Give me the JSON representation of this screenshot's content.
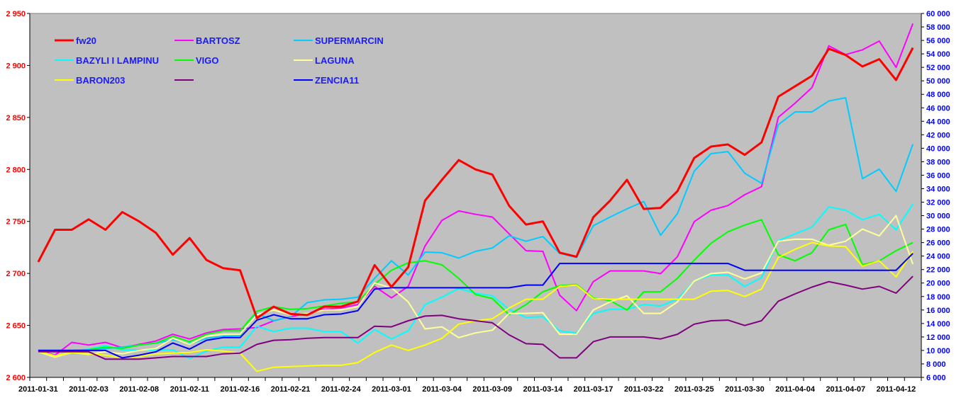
{
  "chart_data": {
    "type": "line",
    "title": "",
    "xlabel": "",
    "ylabel_left": "",
    "ylabel_right": "",
    "x_tick_labels": [
      "2011-01-31",
      "2011-02-03",
      "2011-02-08",
      "2011-02-11",
      "2011-02-16",
      "2011-02-21",
      "2011-02-24",
      "2011-03-01",
      "2011-03-04",
      "2011-03-09",
      "2011-03-14",
      "2011-03-17",
      "2011-03-22",
      "2011-03-25",
      "2011-03-30",
      "2011-04-04",
      "2011-04-07",
      "2011-04-12"
    ],
    "x_label_every": 3,
    "num_points": 53,
    "ylim_left": [
      2600,
      2950
    ],
    "ylim_right": [
      6000,
      60000
    ],
    "yticks_left": [
      "2 600",
      "2 650",
      "2 700",
      "2 750",
      "2 800",
      "2 850",
      "2 900",
      "2 950"
    ],
    "yticks_right": [
      "6 000",
      "8 000",
      "10 000",
      "12 000",
      "14 000",
      "16 000",
      "18 000",
      "20 000",
      "22 000",
      "24 000",
      "26 000",
      "28 000",
      "30 000",
      "32 000",
      "34 000",
      "36 000",
      "38 000",
      "40 000",
      "42 000",
      "44 000",
      "46 000",
      "48 000",
      "50 000",
      "52 000",
      "54 000",
      "56 000",
      "58 000",
      "60 000"
    ],
    "grid": false,
    "legend_position": "top-left",
    "colors": {
      "plot_bg": "#C0C0C0",
      "left_axis_text": "#FF0000",
      "right_axis_text": "#0000FF",
      "legend_text": "#1A1AFF"
    },
    "series": [
      {
        "name": "fw20",
        "axis": "left",
        "color": "#FF0000",
        "width": 3,
        "values": [
          2711,
          2742,
          2742,
          2752,
          2742,
          2759,
          2750,
          2739,
          2718,
          2734,
          2713,
          2705,
          2703,
          2657,
          2668,
          2661,
          2660,
          2668,
          2668,
          2673,
          2708,
          2687,
          2706,
          2770,
          2790,
          2809,
          2800,
          2795,
          2765,
          2747,
          2750,
          2720,
          2716,
          2754,
          2770,
          2790,
          2762,
          2763,
          2779,
          2811,
          2822,
          2824,
          2814,
          2826,
          2870,
          2880,
          2890,
          2916,
          2910,
          2899,
          2906,
          2886,
          2917
        ]
      },
      {
        "name": "BARTOSZ",
        "axis": "right",
        "color": "#FF00FF",
        "width": 2,
        "values": [
          10000,
          9300,
          11200,
          10800,
          11200,
          10400,
          10900,
          11400,
          12400,
          11700,
          12600,
          13100,
          13200,
          13400,
          14400,
          15000,
          15500,
          16100,
          16300,
          16800,
          19500,
          17800,
          19500,
          25500,
          29300,
          30700,
          30200,
          29800,
          27300,
          24800,
          24700,
          18200,
          15900,
          20200,
          21800,
          21800,
          21800,
          21400,
          23900,
          29100,
          30800,
          31500,
          33100,
          34300,
          44600,
          46700,
          49000,
          55200,
          53900,
          54600,
          55900,
          52000,
          58500
        ]
      },
      {
        "name": "SUPERMARCIN",
        "axis": "right",
        "color": "#00CCFF",
        "width": 2,
        "values": [
          10000,
          10000,
          10000,
          10100,
          10300,
          10500,
          10800,
          11100,
          11600,
          11000,
          11800,
          12100,
          12200,
          15500,
          14400,
          15000,
          17100,
          17500,
          17600,
          17900,
          20700,
          23300,
          21200,
          24600,
          24500,
          23700,
          24700,
          25200,
          27000,
          26200,
          26900,
          24400,
          23800,
          28500,
          29800,
          31000,
          32100,
          27100,
          30300,
          36600,
          39200,
          39500,
          36300,
          34800,
          43500,
          45400,
          45400,
          47000,
          47500,
          35500,
          36900,
          33600,
          40600
        ]
      },
      {
        "name": "BAZYLI I LAMPINU",
        "axis": "right",
        "color": "#00FFFF",
        "width": 2,
        "values": [
          9900,
          9900,
          9900,
          10200,
          10700,
          10100,
          10100,
          10100,
          10100,
          8800,
          9900,
          10500,
          10500,
          13600,
          12800,
          13300,
          13300,
          12800,
          12800,
          11100,
          13100,
          11700,
          12900,
          16800,
          17900,
          19200,
          18500,
          18100,
          16100,
          14900,
          15000,
          12900,
          12600,
          15500,
          16100,
          16100,
          16800,
          16600,
          17600,
          20300,
          21200,
          21200,
          19500,
          20800,
          26300,
          27300,
          28300,
          31300,
          30800,
          29400,
          30200,
          27900,
          31700
        ]
      },
      {
        "name": "VIGO",
        "axis": "right",
        "color": "#00FF00",
        "width": 2,
        "values": [
          10000,
          10000,
          10000,
          10100,
          10500,
          10300,
          10800,
          11100,
          12100,
          11300,
          12400,
          12900,
          12900,
          15800,
          16500,
          16100,
          16200,
          16600,
          17000,
          17200,
          19800,
          21900,
          23000,
          23300,
          22700,
          20700,
          18300,
          17700,
          15300,
          16800,
          18700,
          19600,
          19800,
          17800,
          17400,
          16000,
          18700,
          18700,
          20700,
          23400,
          25900,
          27600,
          28600,
          29400,
          24200,
          23300,
          24500,
          27900,
          28700,
          22700,
          23300,
          24800,
          26000
        ]
      },
      {
        "name": "LAGUNA",
        "axis": "right",
        "color": "#FFFF99",
        "width": 2,
        "values": [
          9800,
          9000,
          9700,
          9400,
          9800,
          9500,
          10000,
          10300,
          11800,
          10900,
          12100,
          12400,
          12400,
          15300,
          16000,
          15300,
          15500,
          16000,
          16000,
          16500,
          20000,
          19300,
          17200,
          13200,
          13500,
          11900,
          12600,
          13000,
          15500,
          15500,
          15600,
          12400,
          12400,
          16000,
          17200,
          18100,
          15500,
          15500,
          17200,
          20300,
          21400,
          21600,
          20600,
          21500,
          26200,
          26500,
          26500,
          25600,
          26200,
          28000,
          27000,
          30000,
          22800
        ]
      },
      {
        "name": "BARON203",
        "axis": "right",
        "color": "#FFFF00",
        "width": 2,
        "values": [
          9900,
          9200,
          9700,
          9500,
          9300,
          8900,
          9100,
          9500,
          9600,
          9700,
          10100,
          9900,
          9600,
          6900,
          7500,
          7600,
          7700,
          7800,
          7800,
          8200,
          9700,
          10800,
          10000,
          10800,
          11800,
          13900,
          14400,
          14700,
          16300,
          17600,
          17600,
          19500,
          19700,
          17700,
          17600,
          17600,
          17600,
          17600,
          17600,
          17600,
          18800,
          18900,
          18000,
          19100,
          23800,
          25000,
          26000,
          25500,
          25400,
          22500,
          23300,
          20900,
          24700
        ]
      },
      {
        "name": "",
        "axis": "right",
        "color": "#800080",
        "width": 2,
        "values": [
          9800,
          9800,
          9800,
          9800,
          8700,
          8700,
          8700,
          8900,
          9100,
          9100,
          9100,
          9500,
          9600,
          10900,
          11500,
          11600,
          11800,
          11900,
          11900,
          11900,
          13600,
          13500,
          14400,
          15100,
          15200,
          14700,
          14400,
          14100,
          12300,
          11000,
          10900,
          8900,
          8900,
          11300,
          12000,
          12000,
          12000,
          11700,
          12400,
          13900,
          14400,
          14500,
          13700,
          14400,
          17300,
          18400,
          19400,
          20200,
          19700,
          19100,
          19500,
          18500,
          21000
        ]
      },
      {
        "name": "ZENCIA11",
        "axis": "right",
        "color": "#0000FF",
        "width": 2,
        "values": [
          10000,
          10000,
          10000,
          10000,
          10000,
          8900,
          9300,
          9800,
          11100,
          10200,
          11500,
          11900,
          11900,
          14500,
          15300,
          14700,
          14700,
          15300,
          15400,
          15900,
          19100,
          19300,
          19300,
          19300,
          19300,
          19300,
          19300,
          19300,
          19300,
          19700,
          19700,
          22900,
          22900,
          22900,
          22900,
          22900,
          22900,
          22900,
          22900,
          22900,
          22900,
          22900,
          21900,
          21900,
          21900,
          21900,
          21900,
          21900,
          21900,
          21900,
          21900,
          21900,
          24400
        ]
      }
    ]
  }
}
